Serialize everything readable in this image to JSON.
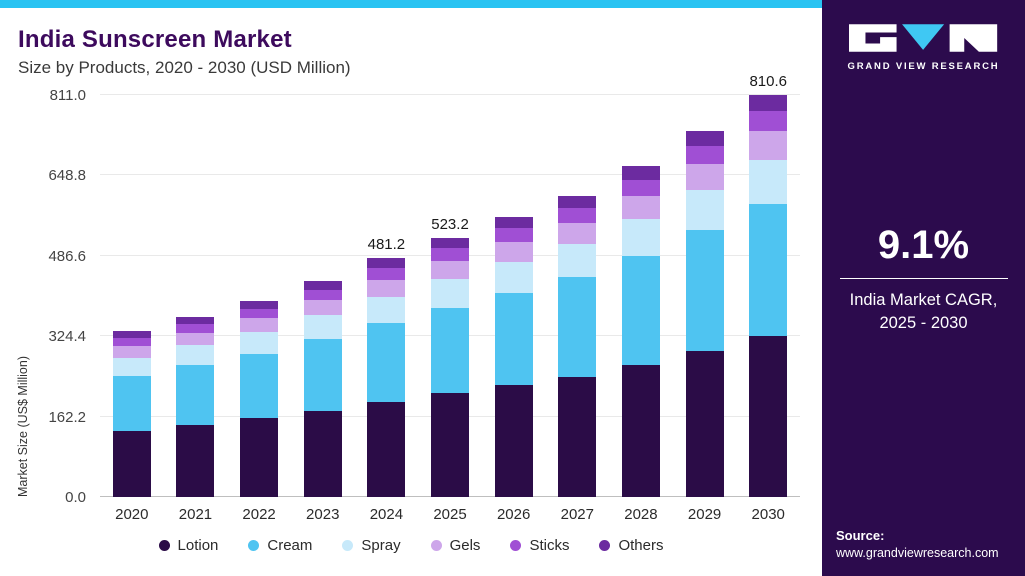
{
  "page": {
    "title": "India Sunscreen Market",
    "subtitle": "Size by Products, 2020 - 2030 (USD Million)"
  },
  "chart_data": {
    "type": "bar",
    "stacked": true,
    "title": "India Sunscreen Market Size by Products, 2020 - 2030 (USD Million)",
    "ylabel": "Market Size (US$ Million)",
    "xlabel": "",
    "ylim": [
      0,
      811
    ],
    "ytick_labels": [
      "0.0",
      "162.2",
      "324.4",
      "486.6",
      "648.8",
      "811.0"
    ],
    "grid": true,
    "legend_position": "bottom",
    "categories": [
      "2020",
      "2021",
      "2022",
      "2023",
      "2024",
      "2025",
      "2026",
      "2027",
      "2028",
      "2029",
      "2030"
    ],
    "series": [
      {
        "name": "Lotion",
        "color": "#2B0C47",
        "values": [
          133.6,
          145.6,
          158.4,
          174.4,
          192.5,
          209.3,
          226.0,
          242.8,
          266.8,
          295.2,
          324.2
        ]
      },
      {
        "name": "Cream",
        "color": "#4FC4F1",
        "values": [
          110.2,
          120.1,
          130.7,
          143.9,
          158.8,
          172.7,
          186.5,
          200.3,
          220.1,
          243.5,
          267.5
        ]
      },
      {
        "name": "Spray",
        "color": "#C7E9FA",
        "values": [
          36.7,
          40.0,
          43.6,
          48.0,
          52.9,
          57.6,
          62.2,
          66.8,
          73.4,
          81.2,
          89.2
        ]
      },
      {
        "name": "Gels",
        "color": "#CDA6EA",
        "values": [
          23.4,
          25.5,
          27.7,
          30.5,
          33.7,
          36.6,
          39.6,
          42.5,
          46.7,
          51.7,
          56.7
        ]
      },
      {
        "name": "Sticks",
        "color": "#A04FD4",
        "values": [
          16.7,
          18.2,
          19.8,
          21.8,
          24.1,
          26.2,
          28.3,
          30.4,
          33.4,
          36.9,
          40.5
        ]
      },
      {
        "name": "Others",
        "color": "#6C2BA0",
        "values": [
          13.4,
          14.6,
          15.8,
          17.4,
          19.2,
          20.8,
          22.6,
          24.3,
          26.7,
          29.5,
          32.5
        ]
      }
    ],
    "annotations": {
      "2024": "481.2",
      "2025": "523.2",
      "2030": "810.6"
    },
    "estimated_totals": [
      334.0,
      364.0,
      396.0,
      436.0,
      481.2,
      523.2,
      565.2,
      607.1,
      667.1,
      738.0,
      810.6
    ]
  },
  "sidebar": {
    "brand": "GRAND VIEW RESEARCH",
    "stat_value": "9.1%",
    "stat_label_line1": "India Market CAGR,",
    "stat_label_line2": "2025 - 2030",
    "source_label": "Source:",
    "source_url": "www.grandviewresearch.com"
  },
  "colors": {
    "accent_strip": "#29C3F2",
    "sidebar_bg": "#2C0B4D",
    "title_text": "#3D0A5D",
    "logo_triangle": "#3FC8F3"
  }
}
